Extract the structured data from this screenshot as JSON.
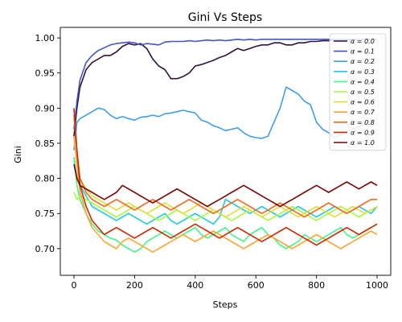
{
  "chart_data": {
    "type": "line",
    "title": "Gini Vs Steps",
    "xlabel": "Steps",
    "ylabel": "Gini",
    "xlim": [
      -45,
      1045
    ],
    "ylim": [
      0.662,
      1.015
    ],
    "xticks": [
      0,
      200,
      400,
      600,
      800,
      1000
    ],
    "yticks": [
      0.7,
      0.75,
      0.8,
      0.85,
      0.9,
      0.95,
      1.0
    ],
    "xtick_labels": [
      "0",
      "200",
      "400",
      "600",
      "800",
      "1000"
    ],
    "ytick_labels": [
      "0.70",
      "0.75",
      "0.80",
      "0.85",
      "0.90",
      "0.95",
      "1.00"
    ],
    "grid": false,
    "legend_position": "top-right",
    "x": [
      0,
      10,
      20,
      40,
      60,
      80,
      100,
      120,
      140,
      160,
      180,
      200,
      220,
      240,
      260,
      280,
      300,
      320,
      340,
      360,
      380,
      400,
      420,
      440,
      460,
      480,
      500,
      520,
      540,
      560,
      580,
      600,
      620,
      640,
      660,
      680,
      700,
      720,
      740,
      760,
      780,
      800,
      820,
      840,
      860,
      880,
      900,
      920,
      940,
      960,
      980,
      1000
    ],
    "series": [
      {
        "name": "α = 0.0",
        "color": "#30123b",
        "values": [
          0.86,
          0.9,
          0.93,
          0.955,
          0.965,
          0.97,
          0.975,
          0.975,
          0.98,
          0.988,
          0.992,
          0.99,
          0.992,
          0.985,
          0.97,
          0.96,
          0.955,
          0.942,
          0.942,
          0.945,
          0.95,
          0.96,
          0.962,
          0.965,
          0.968,
          0.972,
          0.975,
          0.98,
          0.985,
          0.982,
          0.985,
          0.988,
          0.99,
          0.99,
          0.993,
          0.993,
          0.99,
          0.99,
          0.993,
          0.993,
          0.995,
          0.995,
          0.996,
          0.996,
          0.997,
          0.997,
          0.997,
          0.998,
          0.998,
          0.998,
          0.998,
          0.998
        ]
      },
      {
        "name": "α = 0.1",
        "color": "#4454c4",
        "values": [
          0.87,
          0.91,
          0.94,
          0.965,
          0.975,
          0.982,
          0.986,
          0.99,
          0.992,
          0.993,
          0.994,
          0.993,
          0.99,
          0.992,
          0.991,
          0.99,
          0.994,
          0.995,
          0.995,
          0.995,
          0.996,
          0.995,
          0.996,
          0.997,
          0.996,
          0.997,
          0.996,
          0.997,
          0.998,
          0.997,
          0.998,
          0.997,
          0.998,
          0.998,
          0.998,
          0.998,
          0.998,
          0.998,
          0.998,
          0.998,
          0.998,
          0.998,
          0.998,
          0.998,
          0.998,
          0.998,
          0.998,
          0.998,
          0.998,
          0.998,
          0.998,
          0.998
        ]
      },
      {
        "name": "α = 0.2",
        "color": "#3c9ef0",
        "values": [
          0.84,
          0.88,
          0.885,
          0.89,
          0.895,
          0.9,
          0.898,
          0.89,
          0.885,
          0.888,
          0.885,
          0.883,
          0.887,
          0.888,
          0.89,
          0.888,
          0.892,
          0.893,
          0.895,
          0.897,
          0.895,
          0.893,
          0.883,
          0.88,
          0.875,
          0.872,
          0.868,
          0.87,
          0.872,
          0.865,
          0.86,
          0.858,
          0.857,
          0.86,
          0.88,
          0.9,
          0.93,
          0.925,
          0.92,
          0.91,
          0.905,
          0.88,
          0.87,
          0.865,
          0.858,
          0.862,
          0.866,
          0.87,
          0.873,
          0.88,
          0.883,
          0.885
        ]
      },
      {
        "name": "α = 0.3",
        "color": "#1fc9dd",
        "values": [
          0.83,
          0.8,
          0.79,
          0.775,
          0.76,
          0.755,
          0.75,
          0.745,
          0.74,
          0.745,
          0.75,
          0.745,
          0.74,
          0.735,
          0.74,
          0.745,
          0.75,
          0.74,
          0.735,
          0.74,
          0.745,
          0.75,
          0.745,
          0.74,
          0.735,
          0.745,
          0.77,
          0.765,
          0.76,
          0.755,
          0.75,
          0.755,
          0.76,
          0.755,
          0.75,
          0.745,
          0.75,
          0.755,
          0.76,
          0.755,
          0.75,
          0.745,
          0.75,
          0.755,
          0.76,
          0.755,
          0.75,
          0.755,
          0.76,
          0.755,
          0.75,
          0.76
        ]
      },
      {
        "name": "α = 0.4",
        "color": "#3ff58c",
        "values": [
          0.83,
          0.79,
          0.77,
          0.75,
          0.735,
          0.725,
          0.72,
          0.715,
          0.712,
          0.705,
          0.7,
          0.695,
          0.7,
          0.71,
          0.715,
          0.72,
          0.725,
          0.72,
          0.715,
          0.72,
          0.725,
          0.73,
          0.72,
          0.715,
          0.72,
          0.725,
          0.73,
          0.72,
          0.715,
          0.71,
          0.72,
          0.725,
          0.73,
          0.72,
          0.715,
          0.705,
          0.7,
          0.705,
          0.71,
          0.72,
          0.715,
          0.71,
          0.715,
          0.72,
          0.725,
          0.73,
          0.72,
          0.715,
          0.72,
          0.725,
          0.73,
          0.735
        ]
      },
      {
        "name": "α = 0.5",
        "color": "#a4fc3c",
        "values": [
          0.78,
          0.77,
          0.775,
          0.77,
          0.765,
          0.76,
          0.755,
          0.75,
          0.745,
          0.75,
          0.755,
          0.76,
          0.755,
          0.75,
          0.745,
          0.74,
          0.745,
          0.75,
          0.755,
          0.75,
          0.745,
          0.74,
          0.745,
          0.75,
          0.755,
          0.75,
          0.745,
          0.74,
          0.745,
          0.75,
          0.755,
          0.75,
          0.745,
          0.74,
          0.745,
          0.75,
          0.755,
          0.76,
          0.755,
          0.75,
          0.745,
          0.74,
          0.745,
          0.75,
          0.755,
          0.76,
          0.755,
          0.75,
          0.745,
          0.75,
          0.755,
          0.76
        ]
      },
      {
        "name": "α = 0.6",
        "color": "#e1dd37",
        "values": [
          0.86,
          0.82,
          0.8,
          0.785,
          0.775,
          0.77,
          0.765,
          0.76,
          0.755,
          0.76,
          0.765,
          0.76,
          0.755,
          0.75,
          0.755,
          0.76,
          0.765,
          0.76,
          0.755,
          0.75,
          0.755,
          0.76,
          0.765,
          0.76,
          0.755,
          0.75,
          0.745,
          0.75,
          0.755,
          0.76,
          0.755,
          0.75,
          0.745,
          0.75,
          0.755,
          0.76,
          0.755,
          0.75,
          0.745,
          0.75,
          0.755,
          0.76,
          0.755,
          0.75,
          0.745,
          0.75,
          0.755,
          0.76,
          0.755,
          0.75,
          0.755,
          0.76
        ]
      },
      {
        "name": "α = 0.7",
        "color": "#fea431",
        "values": [
          0.86,
          0.82,
          0.78,
          0.75,
          0.73,
          0.72,
          0.71,
          0.705,
          0.7,
          0.71,
          0.715,
          0.71,
          0.705,
          0.7,
          0.695,
          0.7,
          0.705,
          0.71,
          0.715,
          0.72,
          0.715,
          0.71,
          0.715,
          0.72,
          0.725,
          0.72,
          0.715,
          0.71,
          0.705,
          0.7,
          0.705,
          0.71,
          0.715,
          0.72,
          0.715,
          0.71,
          0.705,
          0.7,
          0.705,
          0.71,
          0.715,
          0.72,
          0.715,
          0.71,
          0.705,
          0.7,
          0.705,
          0.71,
          0.715,
          0.72,
          0.725,
          0.72
        ]
      },
      {
        "name": "α = 0.8",
        "color": "#f4661a",
        "values": [
          0.89,
          0.84,
          0.8,
          0.78,
          0.77,
          0.765,
          0.76,
          0.765,
          0.77,
          0.765,
          0.76,
          0.755,
          0.76,
          0.765,
          0.77,
          0.765,
          0.76,
          0.755,
          0.76,
          0.765,
          0.77,
          0.765,
          0.76,
          0.755,
          0.75,
          0.755,
          0.76,
          0.765,
          0.77,
          0.765,
          0.76,
          0.755,
          0.75,
          0.755,
          0.76,
          0.765,
          0.76,
          0.755,
          0.75,
          0.745,
          0.75,
          0.755,
          0.76,
          0.765,
          0.76,
          0.755,
          0.75,
          0.755,
          0.76,
          0.765,
          0.77,
          0.77
        ]
      },
      {
        "name": "α = 0.9",
        "color": "#cb2a04",
        "values": [
          0.9,
          0.84,
          0.79,
          0.76,
          0.74,
          0.73,
          0.72,
          0.725,
          0.73,
          0.725,
          0.72,
          0.715,
          0.72,
          0.725,
          0.73,
          0.725,
          0.72,
          0.715,
          0.72,
          0.725,
          0.73,
          0.735,
          0.73,
          0.725,
          0.72,
          0.715,
          0.72,
          0.725,
          0.73,
          0.725,
          0.72,
          0.715,
          0.71,
          0.715,
          0.72,
          0.725,
          0.73,
          0.725,
          0.72,
          0.715,
          0.71,
          0.705,
          0.71,
          0.715,
          0.72,
          0.725,
          0.73,
          0.725,
          0.72,
          0.725,
          0.73,
          0.735
        ]
      },
      {
        "name": "α = 1.0",
        "color": "#7a0403",
        "values": [
          0.82,
          0.8,
          0.79,
          0.785,
          0.78,
          0.775,
          0.77,
          0.775,
          0.78,
          0.79,
          0.785,
          0.78,
          0.775,
          0.77,
          0.765,
          0.77,
          0.775,
          0.78,
          0.785,
          0.78,
          0.775,
          0.77,
          0.765,
          0.76,
          0.765,
          0.77,
          0.775,
          0.78,
          0.785,
          0.79,
          0.785,
          0.78,
          0.775,
          0.77,
          0.765,
          0.76,
          0.765,
          0.77,
          0.775,
          0.78,
          0.785,
          0.79,
          0.785,
          0.78,
          0.785,
          0.79,
          0.795,
          0.79,
          0.785,
          0.79,
          0.795,
          0.79
        ]
      }
    ]
  }
}
